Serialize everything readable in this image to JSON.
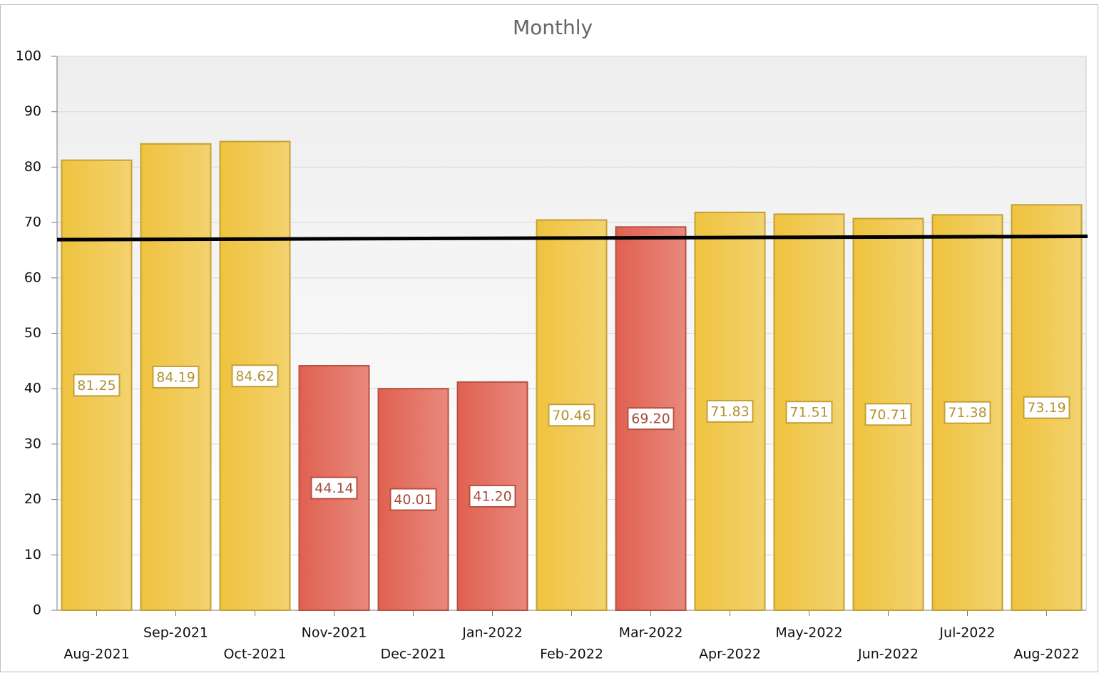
{
  "chart_data": {
    "type": "bar",
    "title": "Monthly",
    "categories": [
      "Aug-2021",
      "Sep-2021",
      "Oct-2021",
      "Nov-2021",
      "Dec-2021",
      "Jan-2022",
      "Feb-2022",
      "Mar-2022",
      "Apr-2022",
      "May-2022",
      "Jun-2022",
      "Jul-2022",
      "Aug-2022"
    ],
    "values": [
      81.25,
      84.19,
      84.62,
      44.14,
      40.01,
      41.2,
      70.46,
      69.2,
      71.83,
      71.51,
      70.71,
      71.38,
      73.19
    ],
    "value_labels": [
      "81.25",
      "84.19",
      "84.62",
      "44.14",
      "40.01",
      "41.20",
      "70.46",
      "69.20",
      "71.83",
      "71.51",
      "70.71",
      "71.38",
      "73.19"
    ],
    "colors": [
      "#efc33f",
      "#efc33f",
      "#efc33f",
      "#e06150",
      "#e06150",
      "#e06150",
      "#efc33f",
      "#e06150",
      "#efc33f",
      "#efc33f",
      "#efc33f",
      "#efc33f",
      "#efc33f"
    ],
    "trend_line": {
      "values": [
        66.9,
        67.5
      ],
      "color": "#000000"
    },
    "ylim": [
      0,
      100
    ],
    "yticks": [
      0,
      10,
      20,
      30,
      40,
      50,
      60,
      70,
      80,
      90,
      100
    ],
    "grid": true
  }
}
